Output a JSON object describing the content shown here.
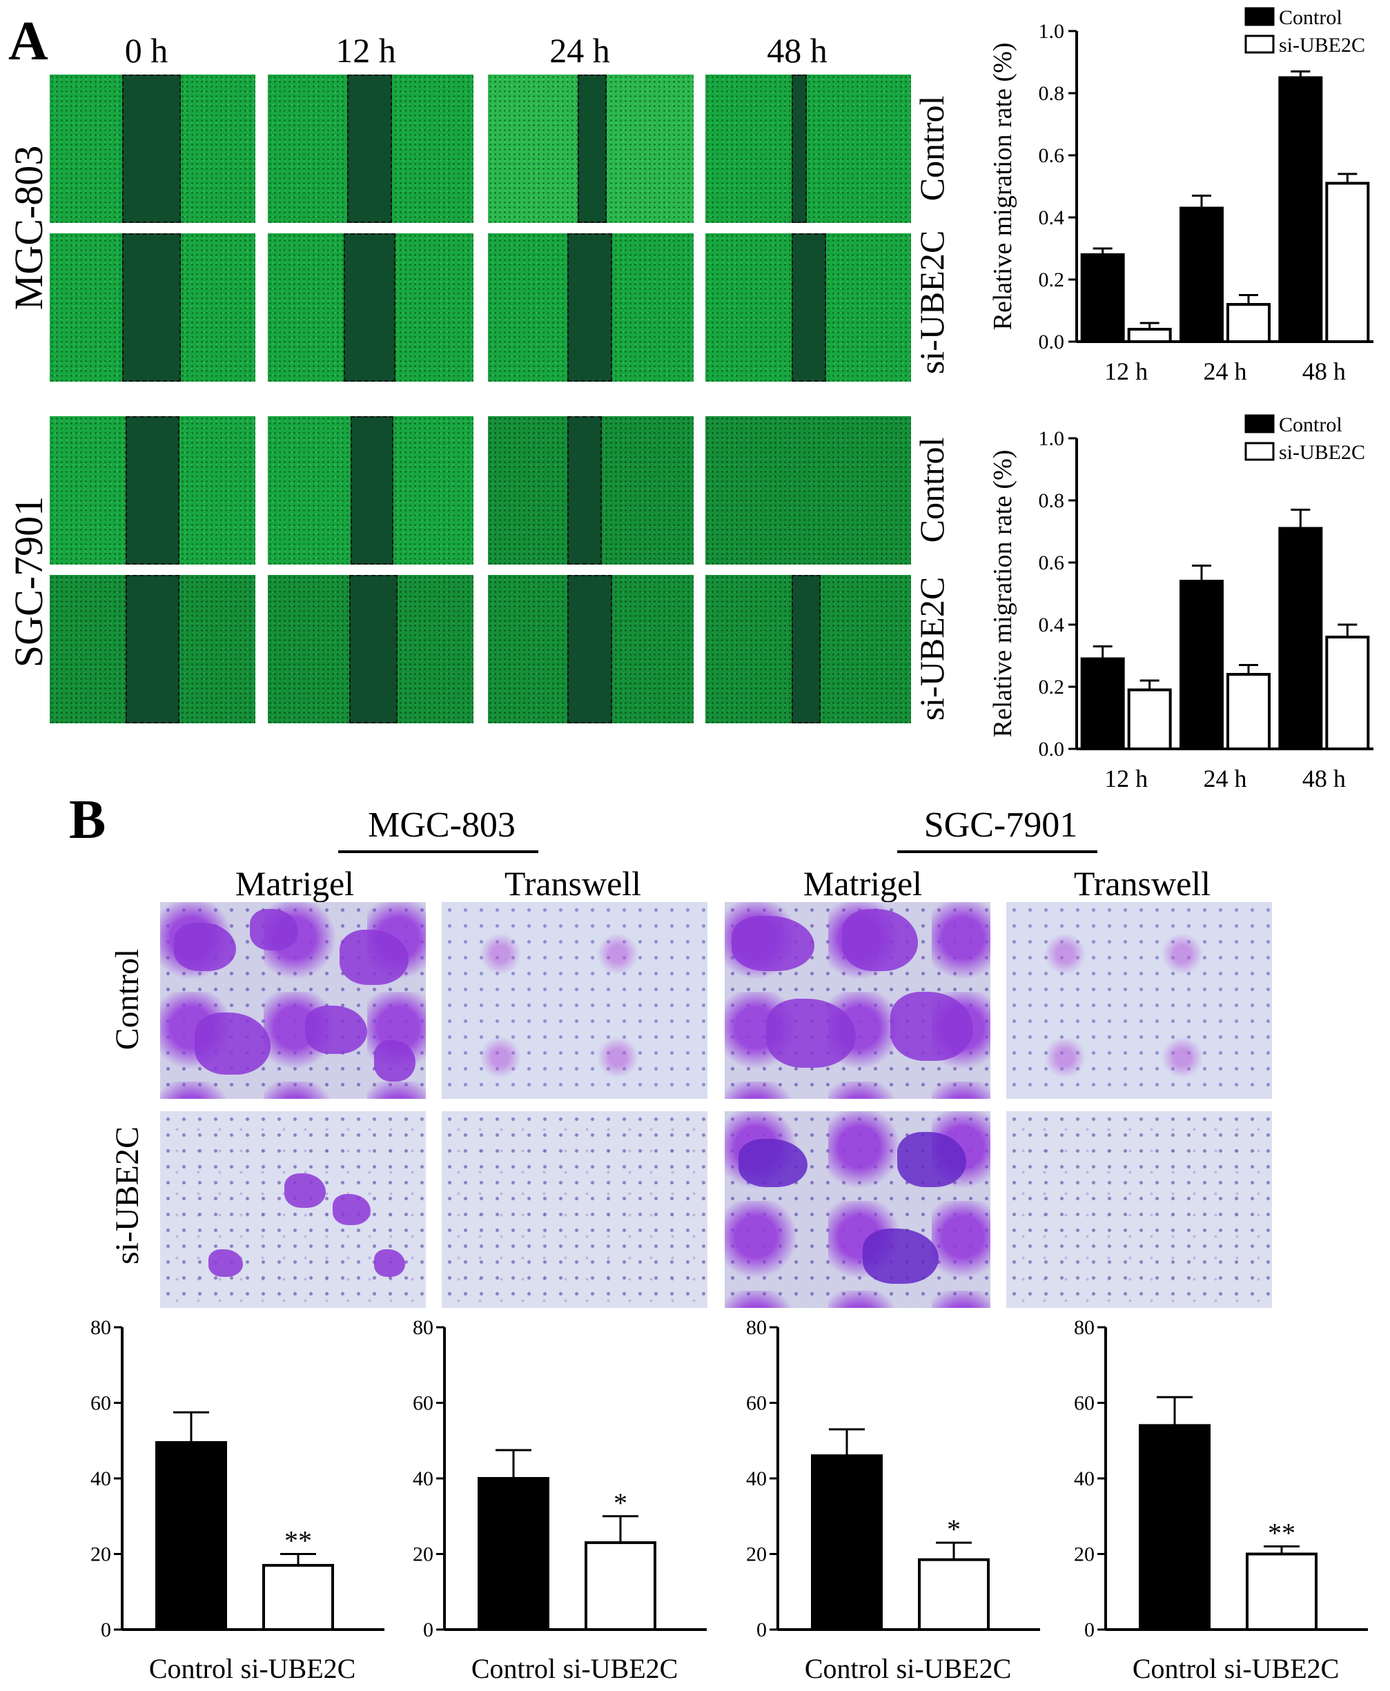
{
  "panel_a": {
    "letter": "A",
    "time_labels": [
      "0 h",
      "12 h",
      "24 h",
      "48 h"
    ],
    "cell_lines": [
      "MGC-803",
      "SGC-7901"
    ],
    "conditions": [
      "Control",
      "si-UBE2C"
    ]
  },
  "panel_b": {
    "letter": "B",
    "groups": [
      "MGC-803",
      "SGC-7901"
    ],
    "assays": [
      "Matrigel",
      "Transwell",
      "Matrigel",
      "Transwell"
    ],
    "conditions": [
      "Control",
      "si-UBE2C"
    ]
  },
  "colors": {
    "control": "#000000",
    "si": "#ffffff",
    "green": "#18a640",
    "purple": "#8c37d7"
  },
  "chart_data": [
    {
      "type": "bar",
      "ylabel": "Relative migration rate (%)",
      "categories": [
        "12 h",
        "24 h",
        "48 h"
      ],
      "ylim": [
        0,
        1.0
      ],
      "yticks": [
        "0.0",
        "0.2",
        "0.4",
        "0.6",
        "0.8",
        "1.0"
      ],
      "legend": "top-right",
      "series": [
        {
          "name": "Control",
          "values": [
            0.28,
            0.43,
            0.85
          ],
          "errors": [
            0.02,
            0.04,
            0.02
          ]
        },
        {
          "name": "si-UBE2C",
          "values": [
            0.04,
            0.12,
            0.51
          ],
          "errors": [
            0.02,
            0.03,
            0.03
          ]
        }
      ]
    },
    {
      "type": "bar",
      "ylabel": "Relative migration rate (%)",
      "categories": [
        "12 h",
        "24 h",
        "48 h"
      ],
      "ylim": [
        0,
        1.0
      ],
      "yticks": [
        "0.0",
        "0.2",
        "0.4",
        "0.6",
        "0.8",
        "1.0"
      ],
      "legend": "top-right",
      "series": [
        {
          "name": "Control",
          "values": [
            0.29,
            0.54,
            0.71
          ],
          "errors": [
            0.04,
            0.05,
            0.06
          ]
        },
        {
          "name": "si-UBE2C",
          "values": [
            0.19,
            0.24,
            0.36
          ],
          "errors": [
            0.03,
            0.03,
            0.04
          ]
        }
      ]
    },
    {
      "type": "bar",
      "categories": [
        "Control",
        "si-UBE2C"
      ],
      "values": [
        49.5,
        17.0
      ],
      "errors": [
        8.0,
        3.0
      ],
      "annotations": [
        "",
        "**"
      ],
      "ylim": [
        0,
        80
      ],
      "yticks": [
        "0",
        "20",
        "40",
        "60",
        "80"
      ]
    },
    {
      "type": "bar",
      "categories": [
        "Control",
        "si-UBE2C"
      ],
      "values": [
        40.0,
        23.0
      ],
      "errors": [
        7.5,
        7.0
      ],
      "annotations": [
        "",
        "*"
      ],
      "ylim": [
        0,
        80
      ],
      "yticks": [
        "0",
        "20",
        "40",
        "60",
        "80"
      ]
    },
    {
      "type": "bar",
      "categories": [
        "Control",
        "si-UBE2C"
      ],
      "values": [
        46.0,
        18.5
      ],
      "errors": [
        7.0,
        4.5
      ],
      "annotations": [
        "",
        "*"
      ],
      "ylim": [
        0,
        80
      ],
      "yticks": [
        "0",
        "20",
        "40",
        "60",
        "80"
      ]
    },
    {
      "type": "bar",
      "categories": [
        "Control",
        "si-UBE2C"
      ],
      "values": [
        54.0,
        20.0
      ],
      "errors": [
        7.5,
        2.0
      ],
      "annotations": [
        "",
        "**"
      ],
      "ylim": [
        0,
        80
      ],
      "yticks": [
        "0",
        "20",
        "40",
        "60",
        "80"
      ]
    }
  ]
}
